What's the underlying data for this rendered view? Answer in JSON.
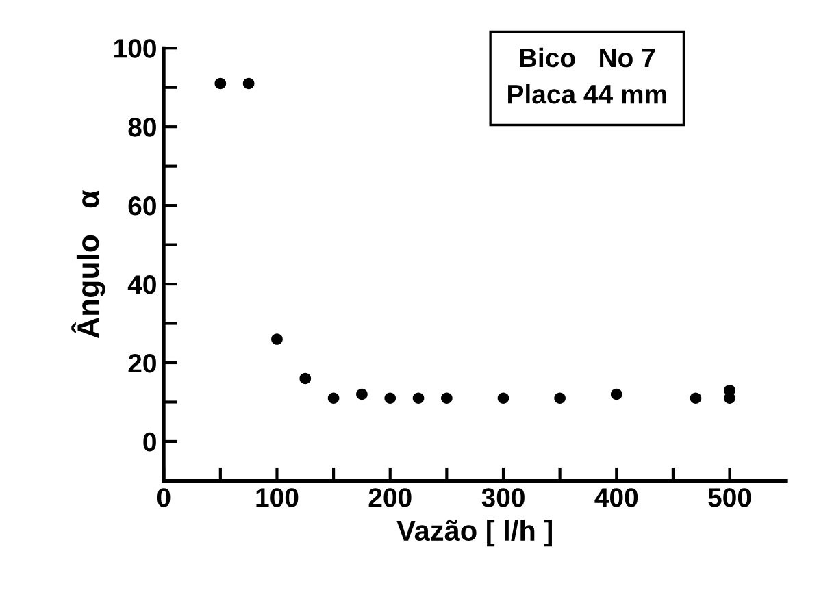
{
  "chart_data": {
    "type": "scatter",
    "xlabel": "Vazão [ l/h ]",
    "ylabel": "Ângulo   α",
    "annotations": [
      "Bico   No 7\nPlaca 44 mm"
    ],
    "x": [
      50,
      75,
      100,
      125,
      150,
      175,
      200,
      225,
      250,
      300,
      350,
      400,
      470,
      500,
      500
    ],
    "values": [
      91,
      91,
      26,
      16,
      11,
      12,
      11,
      11,
      11,
      11,
      11,
      12,
      11,
      13,
      11
    ],
    "color": "#000000",
    "marker": "circle",
    "xlim": [
      0,
      550
    ],
    "ylim": [
      -10,
      100
    ],
    "xticks": [
      0,
      {
        "value": 50,
        "label": null
      },
      100,
      {
        "value": 150,
        "label": null
      },
      200,
      {
        "value": 250,
        "label": null
      },
      300,
      {
        "value": 350,
        "label": null
      },
      400,
      {
        "value": 450,
        "label": null
      },
      500
    ],
    "yticks": [
      0,
      {
        "value": 10,
        "label": null
      },
      20,
      {
        "value": 30,
        "label": null
      },
      40,
      {
        "value": 50,
        "label": null
      },
      60,
      {
        "value": 70,
        "label": null
      },
      80,
      {
        "value": 90,
        "label": null
      },
      100
    ],
    "grid": false,
    "legend": false
  }
}
